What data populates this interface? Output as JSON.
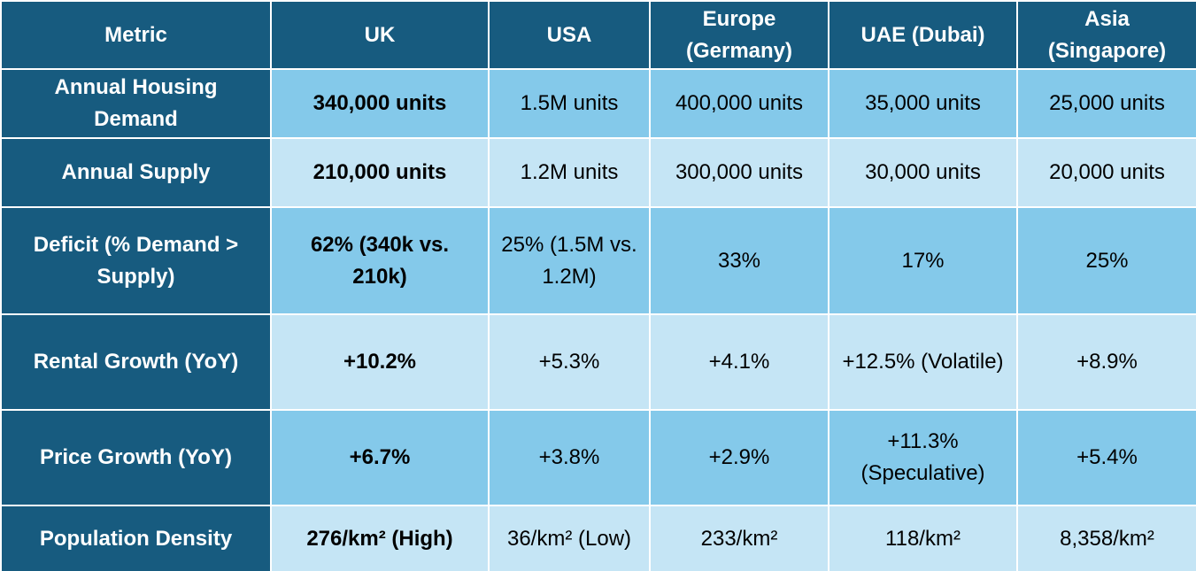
{
  "table": {
    "header": [
      "Metric",
      "UK",
      "USA",
      "Europe (Germany)",
      "UAE (Dubai)",
      "Asia (Singapore)"
    ],
    "rows": [
      [
        "Annual Housing Demand",
        "340,000 units",
        "1.5M units",
        "400,000 units",
        "35,000 units",
        "25,000 units"
      ],
      [
        "Annual Supply",
        "210,000 units",
        "1.2M units",
        "300,000 units",
        "30,000 units",
        "20,000 units"
      ],
      [
        "Deficit (% Demand > Supply)",
        "62% (340k vs. 210k)",
        "25% (1.5M vs. 1.2M)",
        "33%",
        "17%",
        "25%"
      ],
      [
        "Rental Growth (YoY)",
        "+10.2%",
        "+5.3%",
        "+4.1%",
        "+12.5% (Volatile)",
        "+8.9%"
      ],
      [
        "Price Growth (YoY)",
        "+6.7%",
        "+3.8%",
        "+2.9%",
        "+11.3% (Speculative)",
        "+5.4%"
      ],
      [
        "Population Density",
        "276/km² (High)",
        "36/km² (Low)",
        "233/km²",
        "118/km²",
        "8,358/km²"
      ]
    ]
  }
}
